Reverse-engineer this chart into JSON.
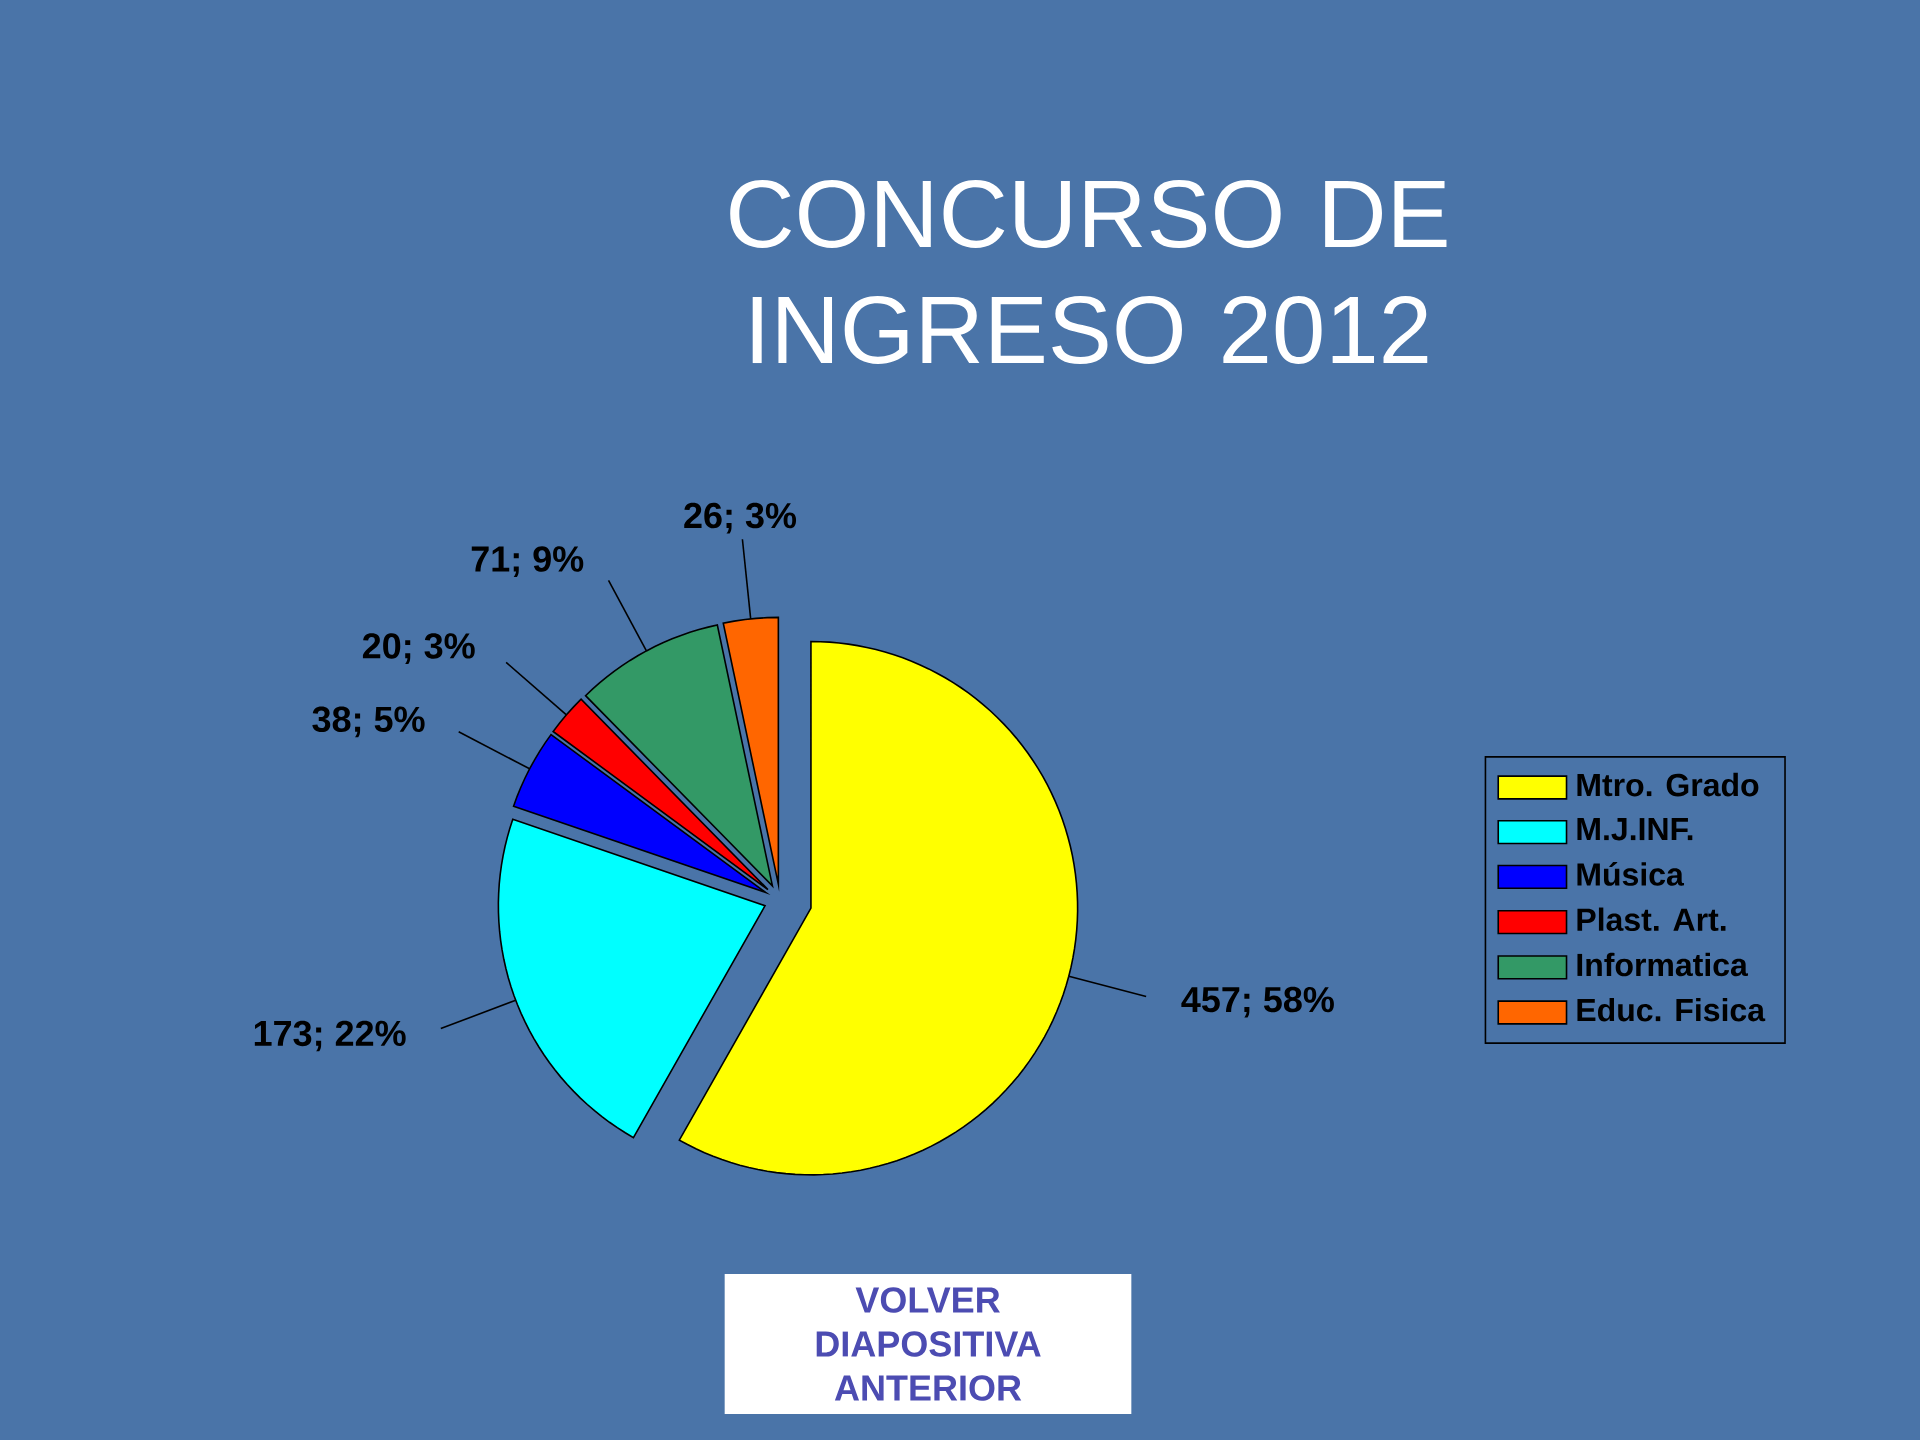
{
  "chart_data": {
    "type": "pie",
    "title": "CONCURSO DE INGRESO 2012",
    "categories": [
      "Mtro. Grado",
      "M.J.INF.",
      "Música",
      "Plast. Art.",
      "Informatica",
      "Educ. Fisica"
    ],
    "values": [
      457,
      173,
      38,
      20,
      71,
      26
    ],
    "colors": [
      "#ffff00",
      "#00ffff",
      "#0000ff",
      "#ff0000",
      "#339966",
      "#ff6600"
    ],
    "value_labels": [
      "457; 58%",
      "173; 22%",
      "38; 5%",
      "20; 3%",
      "71; 9%",
      "26; 3%"
    ],
    "legend": "right",
    "annotations": [
      "VOLVER DIAPOSITIVA ANTERIOR"
    ]
  }
}
